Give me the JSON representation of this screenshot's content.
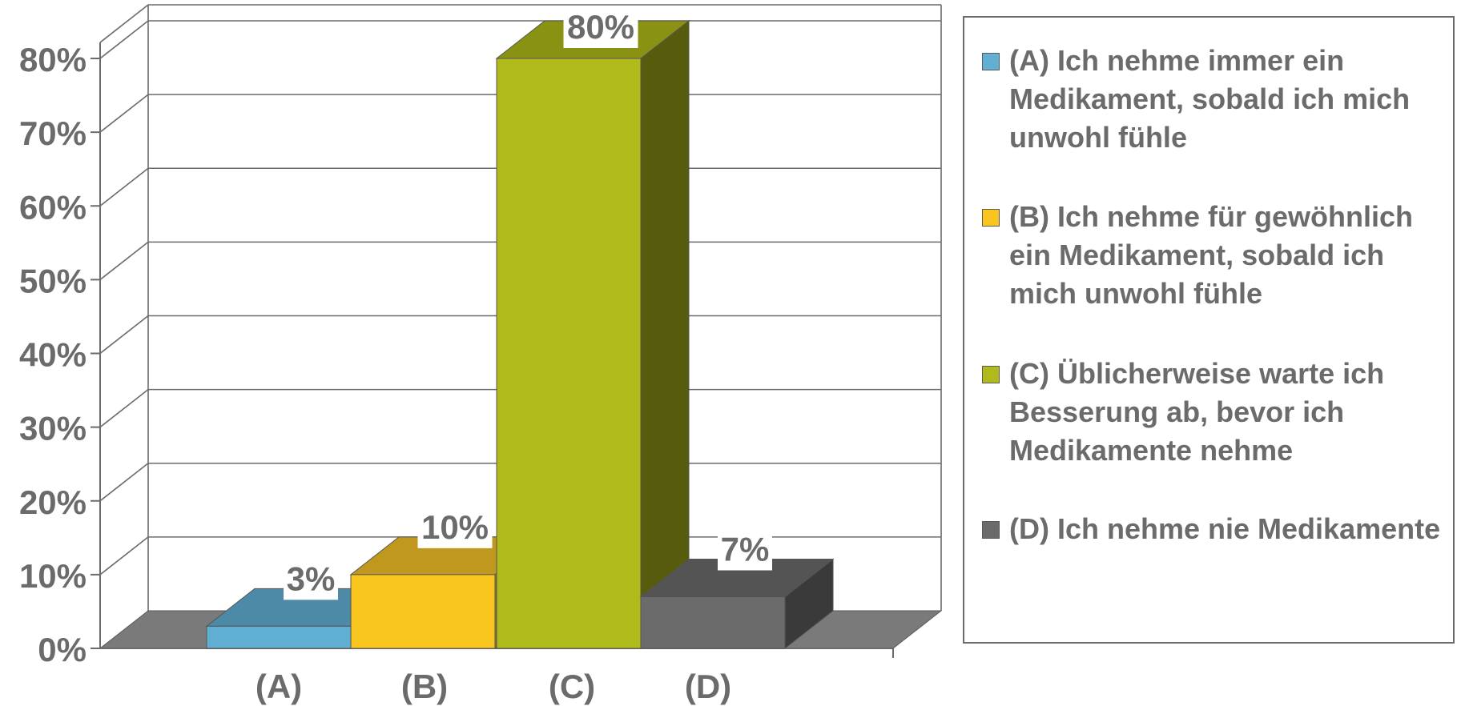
{
  "chart_data": {
    "type": "bar",
    "categories": [
      "(A)",
      "(B)",
      "(C)",
      "(D)"
    ],
    "values": [
      3,
      10,
      80,
      7
    ],
    "data_labels": [
      "3%",
      "10%",
      "80%",
      "7%"
    ],
    "ylim": [
      0,
      80
    ],
    "yticks": [
      "0%",
      "10%",
      "20%",
      "30%",
      "40%",
      "50%",
      "60%",
      "70%",
      "80%"
    ],
    "grid": true,
    "legend_position": "right",
    "legend": [
      "(A) Ich nehme immer ein Medikament, sobald ich mich unwohl fühle",
      "(B) Ich nehme für gewöhnlich ein Medikament, sobald ich mich unwohl fühle",
      "(C) Üblicherweise warte ich Besserung ab, bevor ich Medikamente nehme",
      "(D) Ich nehme nie Medikamente"
    ],
    "colors": {
      "front": [
        "#62afd4",
        "#f8c61e",
        "#b0ba1b",
        "#6b6b6b"
      ],
      "top": [
        "#4d8aa7",
        "#c0981e",
        "#8a9214",
        "#545454"
      ],
      "side": [
        "#3e6f87",
        "#977817",
        "#575c0d",
        "#3a3a3a"
      ],
      "floor": "#7a7a7a",
      "text": "#6b6b6b"
    }
  }
}
